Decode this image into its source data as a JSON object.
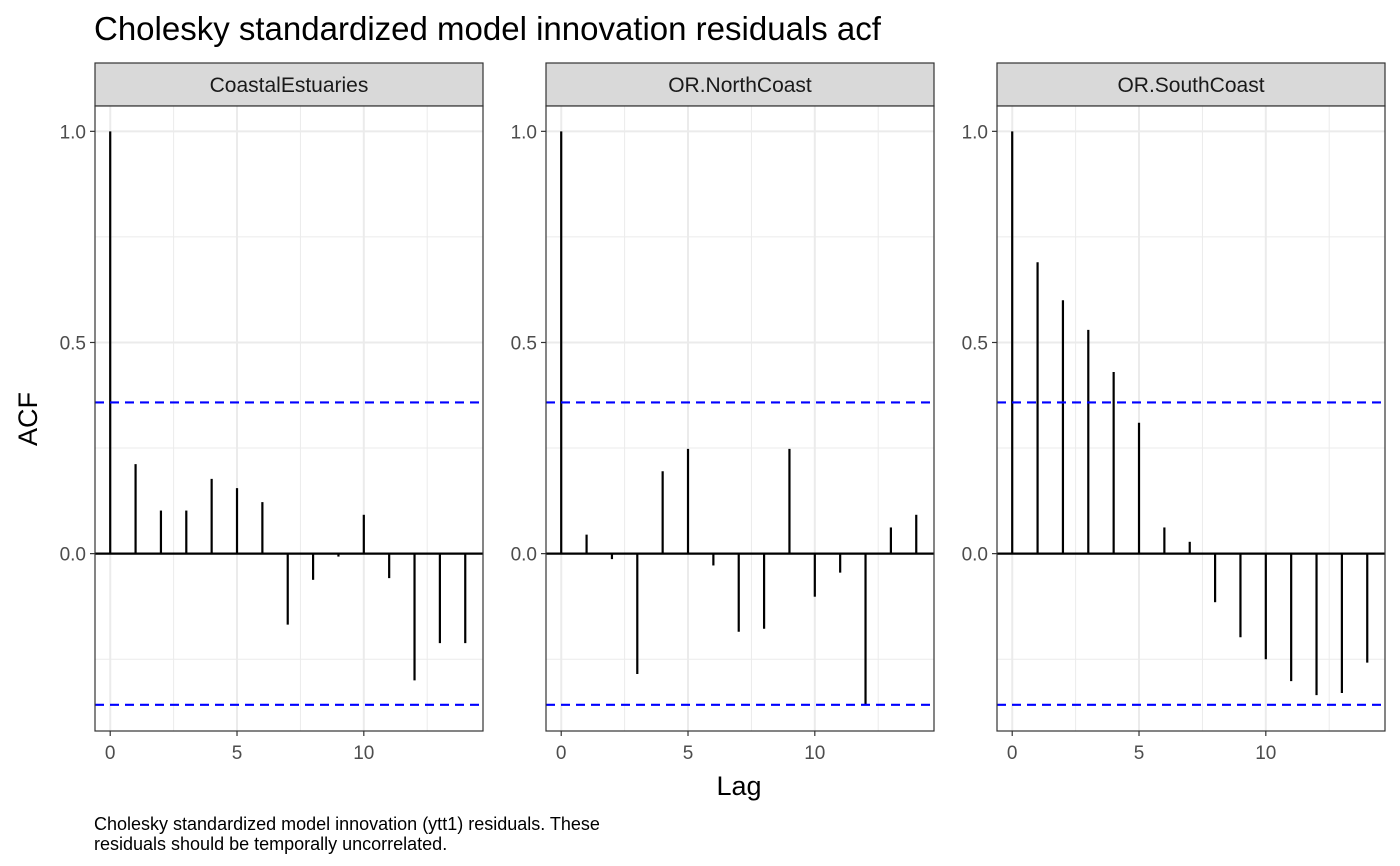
{
  "chart_data": {
    "type": "bar",
    "title": "Cholesky standardized model innovation residuals acf",
    "xlabel": "Lag",
    "ylabel": "ACF",
    "caption": [
      "Cholesky standardized model innovation (ytt1) residuals. These",
      "residuals should be temporally uncorrelated."
    ],
    "xlim": [
      -0.6,
      14.7
    ],
    "ylim": [
      -0.42,
      1.06
    ],
    "x_ticks": [
      0,
      5,
      10
    ],
    "y_ticks": [
      0.0,
      0.5,
      1.0
    ],
    "y_tick_labels": [
      "0.0",
      "0.5",
      "1.0"
    ],
    "x_tick_labels": [
      "0",
      "5",
      "10"
    ],
    "grid": true,
    "colors": {
      "bars": "#000000",
      "confidence_band": "#0000ff",
      "strip_fill": "#d9d9d9",
      "grid": "#ebebeb",
      "panel_border": "#333333"
    },
    "confidence_bounds": [
      0.358,
      -0.358
    ],
    "panels": [
      {
        "name": "CoastalEstuaries",
        "lags": [
          0,
          1,
          2,
          3,
          4,
          5,
          6,
          7,
          8,
          9,
          10,
          11,
          12,
          13,
          14
        ],
        "values": [
          1.0,
          0.212,
          0.102,
          0.102,
          0.177,
          0.155,
          0.122,
          -0.168,
          -0.062,
          -0.007,
          0.092,
          -0.058,
          -0.3,
          -0.212,
          -0.212
        ]
      },
      {
        "name": "OR.NorthCoast",
        "lags": [
          0,
          1,
          2,
          3,
          4,
          5,
          6,
          7,
          8,
          9,
          10,
          11,
          12,
          13,
          14
        ],
        "values": [
          1.0,
          0.045,
          -0.013,
          -0.285,
          0.195,
          0.248,
          -0.028,
          -0.185,
          -0.178,
          0.248,
          -0.102,
          -0.045,
          -0.358,
          0.062,
          0.092
        ]
      },
      {
        "name": "OR.SouthCoast",
        "lags": [
          0,
          1,
          2,
          3,
          4,
          5,
          6,
          7,
          8,
          9,
          10,
          11,
          12,
          13,
          14
        ],
        "values": [
          1.0,
          0.69,
          0.6,
          0.53,
          0.43,
          0.31,
          0.062,
          0.028,
          -0.115,
          -0.198,
          -0.25,
          -0.302,
          -0.335,
          -0.33,
          -0.258
        ]
      }
    ]
  }
}
